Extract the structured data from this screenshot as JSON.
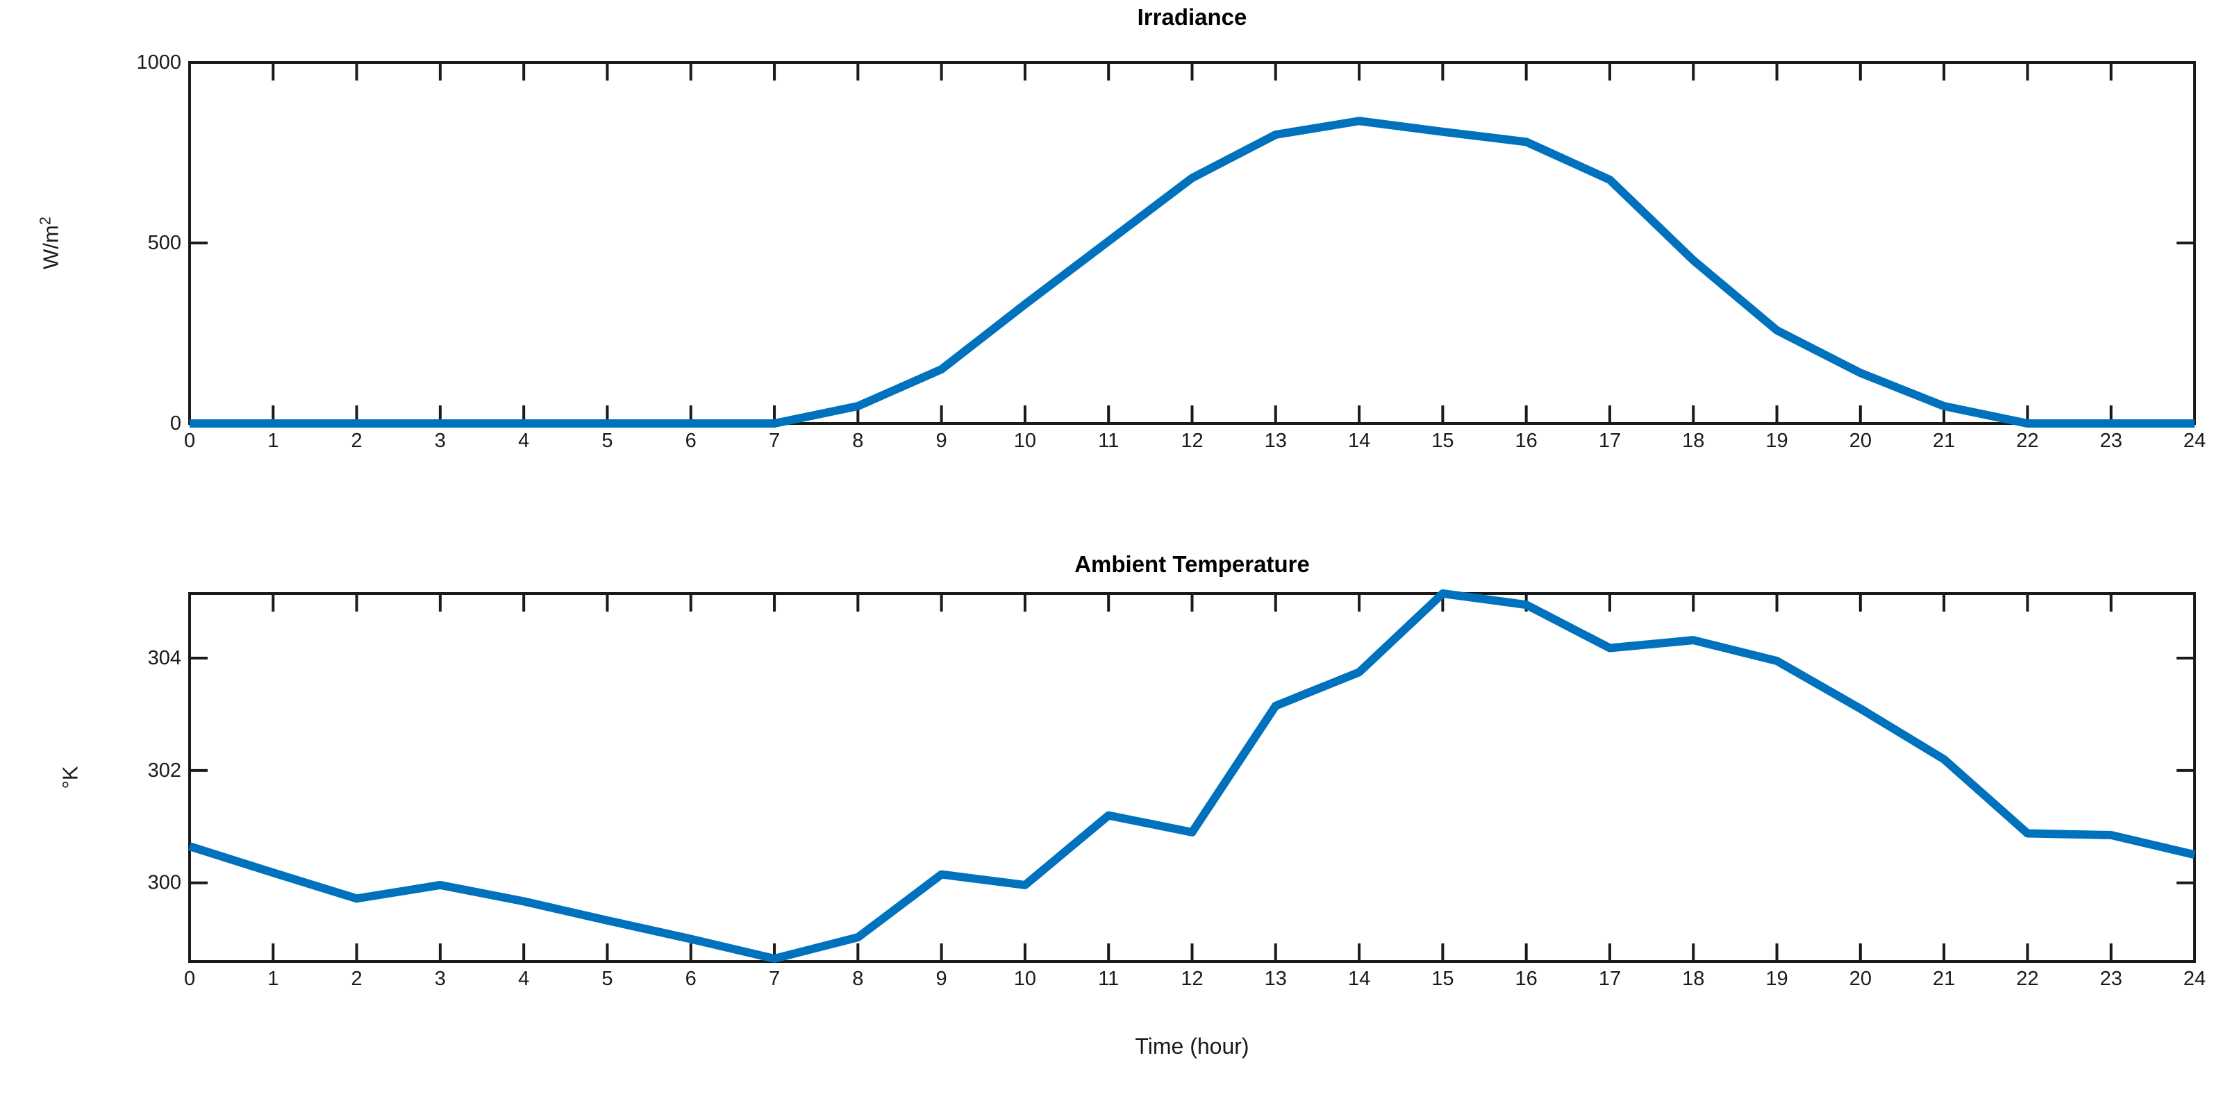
{
  "figure": {
    "background": "#ffffff",
    "axis_color": "#1a1a1a"
  },
  "xlabel": "Time (hour)",
  "chart_data": [
    {
      "name": "irradiance",
      "type": "line",
      "title": "Irradiance",
      "ylabel": {
        "base": "W/m",
        "sup": "2"
      },
      "line_color": "#0072BD",
      "grid": false,
      "legend": null,
      "xlim": [
        0,
        24
      ],
      "ylim": [
        0,
        1000
      ],
      "xticks": [
        0,
        1,
        2,
        3,
        4,
        5,
        6,
        7,
        8,
        9,
        10,
        11,
        12,
        13,
        14,
        15,
        16,
        17,
        18,
        19,
        20,
        21,
        22,
        23,
        24
      ],
      "yticks": [
        0,
        500,
        1000
      ],
      "x": [
        0,
        1,
        2,
        3,
        4,
        5,
        6,
        7,
        8,
        9,
        10,
        11,
        12,
        13,
        14,
        15,
        16,
        17,
        18,
        19,
        20,
        21,
        22,
        23,
        24
      ],
      "values": [
        0,
        0,
        0,
        0,
        0,
        0,
        0,
        0,
        48,
        150,
        330,
        505,
        680,
        800,
        838,
        808,
        780,
        675,
        452,
        258,
        140,
        48,
        0,
        0,
        0
      ]
    },
    {
      "name": "ambient-temperature",
      "type": "line",
      "title": "Ambient Temperature",
      "ylabel": {
        "base": "°K",
        "sup": ""
      },
      "line_color": "#0072BD",
      "grid": false,
      "legend": null,
      "xlim": [
        0,
        24
      ],
      "ylim": [
        298.6,
        305.15
      ],
      "xticks": [
        0,
        1,
        2,
        3,
        4,
        5,
        6,
        7,
        8,
        9,
        10,
        11,
        12,
        13,
        14,
        15,
        16,
        17,
        18,
        19,
        20,
        21,
        22,
        23,
        24
      ],
      "yticks": [
        300,
        302,
        304
      ],
      "x": [
        0,
        1,
        2,
        3,
        4,
        5,
        6,
        7,
        8,
        9,
        10,
        11,
        12,
        13,
        14,
        15,
        16,
        17,
        18,
        19,
        20,
        21,
        22,
        23,
        24
      ],
      "values": [
        300.65,
        300.18,
        299.72,
        299.96,
        299.67,
        299.33,
        299.0,
        298.65,
        299.03,
        300.15,
        299.96,
        301.2,
        300.9,
        303.15,
        303.75,
        305.15,
        304.95,
        304.18,
        304.32,
        303.95,
        303.1,
        302.2,
        300.88,
        300.85,
        300.5
      ]
    }
  ]
}
